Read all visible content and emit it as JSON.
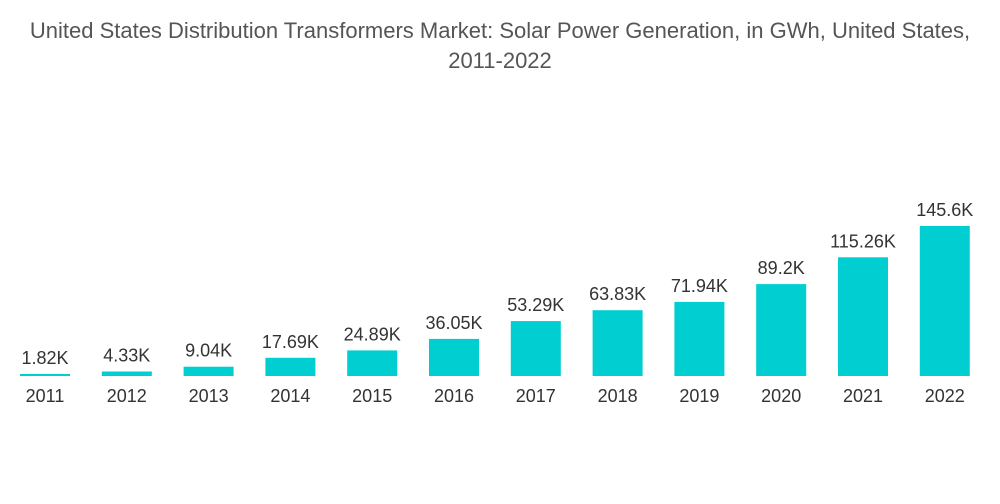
{
  "chart_data": {
    "type": "bar",
    "title": "United States Distribution Transformers Market: Solar Power Generation, in GWh, United States, 2011-2022",
    "xlabel": "",
    "ylabel": "",
    "categories": [
      "2011",
      "2012",
      "2013",
      "2014",
      "2015",
      "2016",
      "2017",
      "2018",
      "2019",
      "2020",
      "2021",
      "2022"
    ],
    "values": [
      1820,
      4330,
      9040,
      17690,
      24890,
      36050,
      53290,
      63830,
      71940,
      89200,
      115260,
      145600
    ],
    "data_labels": [
      "1.82K",
      "4.33K",
      "9.04K",
      "17.69K",
      "24.89K",
      "36.05K",
      "53.29K",
      "63.83K",
      "71.94K",
      "89.2K",
      "115.26K",
      "145.6K"
    ],
    "ylim": [
      0,
      145600
    ],
    "grid": false,
    "legend": "none",
    "bar_color": "#00CED1"
  }
}
